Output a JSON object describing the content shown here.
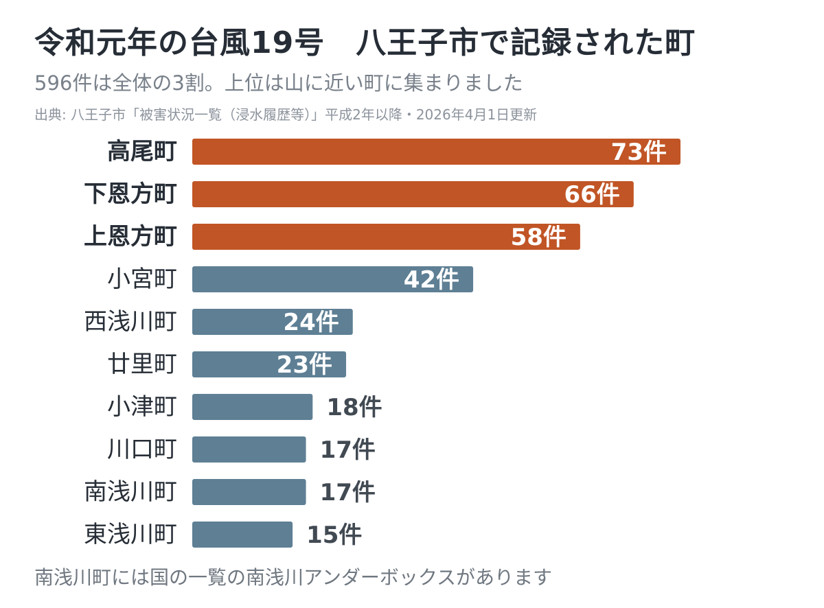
{
  "title": "令和元年の台風19号　八王子市で記録された町",
  "subtitle": "596件は全体の3割。上位は山に近い町に集まりました",
  "source": "出典: 八王子市「被害状況一覧（浸水履歴等）」平成2年以降・2026年4月1日更新",
  "footnote": "南浅川町には国の一覧の南浅川アンダーボックスがあります",
  "colors": {
    "highlight": "#c15525",
    "normal": "#5e7f94",
    "label_inside": "#ffffff",
    "label_outside": "#414952",
    "category_text": "#262d36"
  },
  "chart_data": {
    "type": "bar",
    "orientation": "horizontal",
    "unit": "件",
    "categories": [
      "高尾町",
      "下恩方町",
      "上恩方町",
      "小宮町",
      "西浅川町",
      "廿里町",
      "小津町",
      "川口町",
      "南浅川町",
      "東浅川町"
    ],
    "values": [
      73,
      66,
      58,
      42,
      24,
      23,
      18,
      17,
      17,
      15
    ],
    "highlighted": [
      true,
      true,
      true,
      false,
      false,
      false,
      false,
      false,
      false,
      false
    ],
    "xlim": [
      0,
      73
    ],
    "grid": false,
    "legend": "none"
  }
}
